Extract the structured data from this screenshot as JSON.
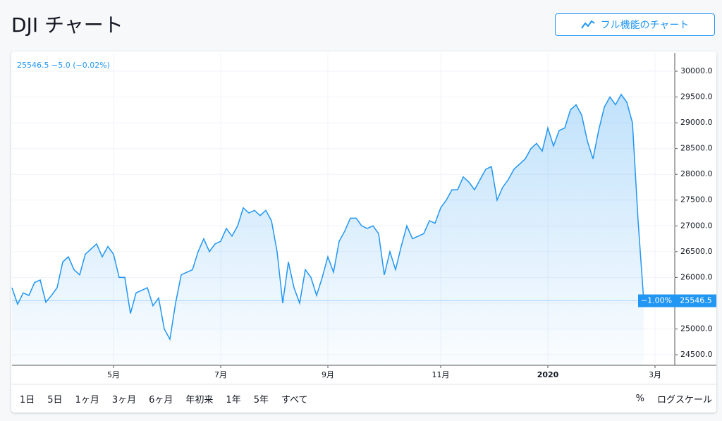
{
  "header": {
    "title": "DJI チャート",
    "button": "フル機能のチャート"
  },
  "chart_data": {
    "type": "line",
    "subtitle": "25546.5 −5.0 (−0.02%)",
    "annotations": [
      "−1.00%",
      "25546.5"
    ],
    "categories": [
      null,
      null,
      null,
      null,
      null,
      null,
      null,
      null,
      null,
      null,
      null,
      null,
      null,
      null,
      null,
      null,
      null,
      null,
      "5月",
      null,
      null,
      null,
      null,
      null,
      null,
      null,
      null,
      null,
      null,
      null,
      null,
      null,
      null,
      null,
      null,
      null,
      null,
      "7月",
      null,
      null,
      null,
      null,
      null,
      null,
      null,
      null,
      null,
      null,
      null,
      null,
      null,
      null,
      null,
      null,
      null,
      null,
      "9月",
      null,
      null,
      null,
      null,
      null,
      null,
      null,
      null,
      null,
      null,
      null,
      null,
      null,
      null,
      null,
      null,
      null,
      null,
      null,
      "11月",
      null,
      null,
      null,
      null,
      null,
      null,
      null,
      null,
      null,
      null,
      null,
      null,
      null,
      null,
      null,
      null,
      null,
      null,
      "2020",
      null,
      null,
      null,
      null,
      null,
      null,
      null,
      null,
      null,
      null,
      null,
      null,
      null,
      null,
      null,
      null,
      null,
      null,
      "3月",
      null
    ],
    "series": [
      {
        "color": "#2196f3",
        "values": [
          25800,
          25480,
          25700,
          25650,
          25900,
          25950,
          25520,
          25650,
          25800,
          26300,
          26400,
          26150,
          26050,
          26450,
          26550,
          26650,
          26400,
          26600,
          26450,
          26000,
          26000,
          25300,
          25700,
          25750,
          25800,
          25450,
          25600,
          25000,
          24800,
          25500,
          26050,
          26100,
          26150,
          26500,
          26750,
          26500,
          26650,
          26700,
          26950,
          26800,
          27000,
          27350,
          27250,
          27300,
          27200,
          27300,
          27100,
          26500,
          25500,
          26300,
          25800,
          25500,
          26150,
          26000,
          25650,
          26000,
          26400,
          26100,
          26700,
          26900,
          27150,
          27150,
          27000,
          26950,
          27000,
          26850,
          26050,
          26500,
          26150,
          26600,
          27000,
          26750,
          26800,
          26850,
          27100,
          27050,
          27350,
          27500,
          27700,
          27700,
          27950,
          27850,
          27700,
          27900,
          28100,
          28150,
          27500,
          27750,
          27900,
          28100,
          28200,
          28300,
          28500,
          28600,
          28450,
          28900,
          28550,
          28850,
          28900,
          29250,
          29350,
          29150,
          28650,
          28300,
          28850,
          29300,
          29500,
          29350,
          29550,
          29400,
          29000,
          27100,
          25546.5,
          null,
          null,
          null
        ]
      }
    ],
    "ylim": [
      24295,
      30356
    ],
    "yticks": [
      {
        "value": 24500,
        "label": "24500.0"
      },
      {
        "value": 25000,
        "label": "25000.0"
      },
      {
        "value": 25500,
        "label": "25500.0"
      },
      {
        "value": 26000,
        "label": "26000.0"
      },
      {
        "value": 26500,
        "label": "26500.0"
      },
      {
        "value": 27000,
        "label": "27000.0"
      },
      {
        "value": 27500,
        "label": "27500.0"
      },
      {
        "value": 28000,
        "label": "28000.0"
      },
      {
        "value": 28500,
        "label": "28500.0"
      },
      {
        "value": 29000,
        "label": "29000.0"
      },
      {
        "value": 29500,
        "label": "29500.0"
      },
      {
        "value": 30000,
        "label": "30000.0"
      }
    ],
    "grid": true
  },
  "toolbar": {
    "ranges": [
      "1日",
      "5日",
      "1ヶ月",
      "3ヶ月",
      "6ヶ月",
      "年初来",
      "1年",
      "5年",
      "すべて"
    ],
    "percent": "%",
    "log": "ログスケール"
  }
}
